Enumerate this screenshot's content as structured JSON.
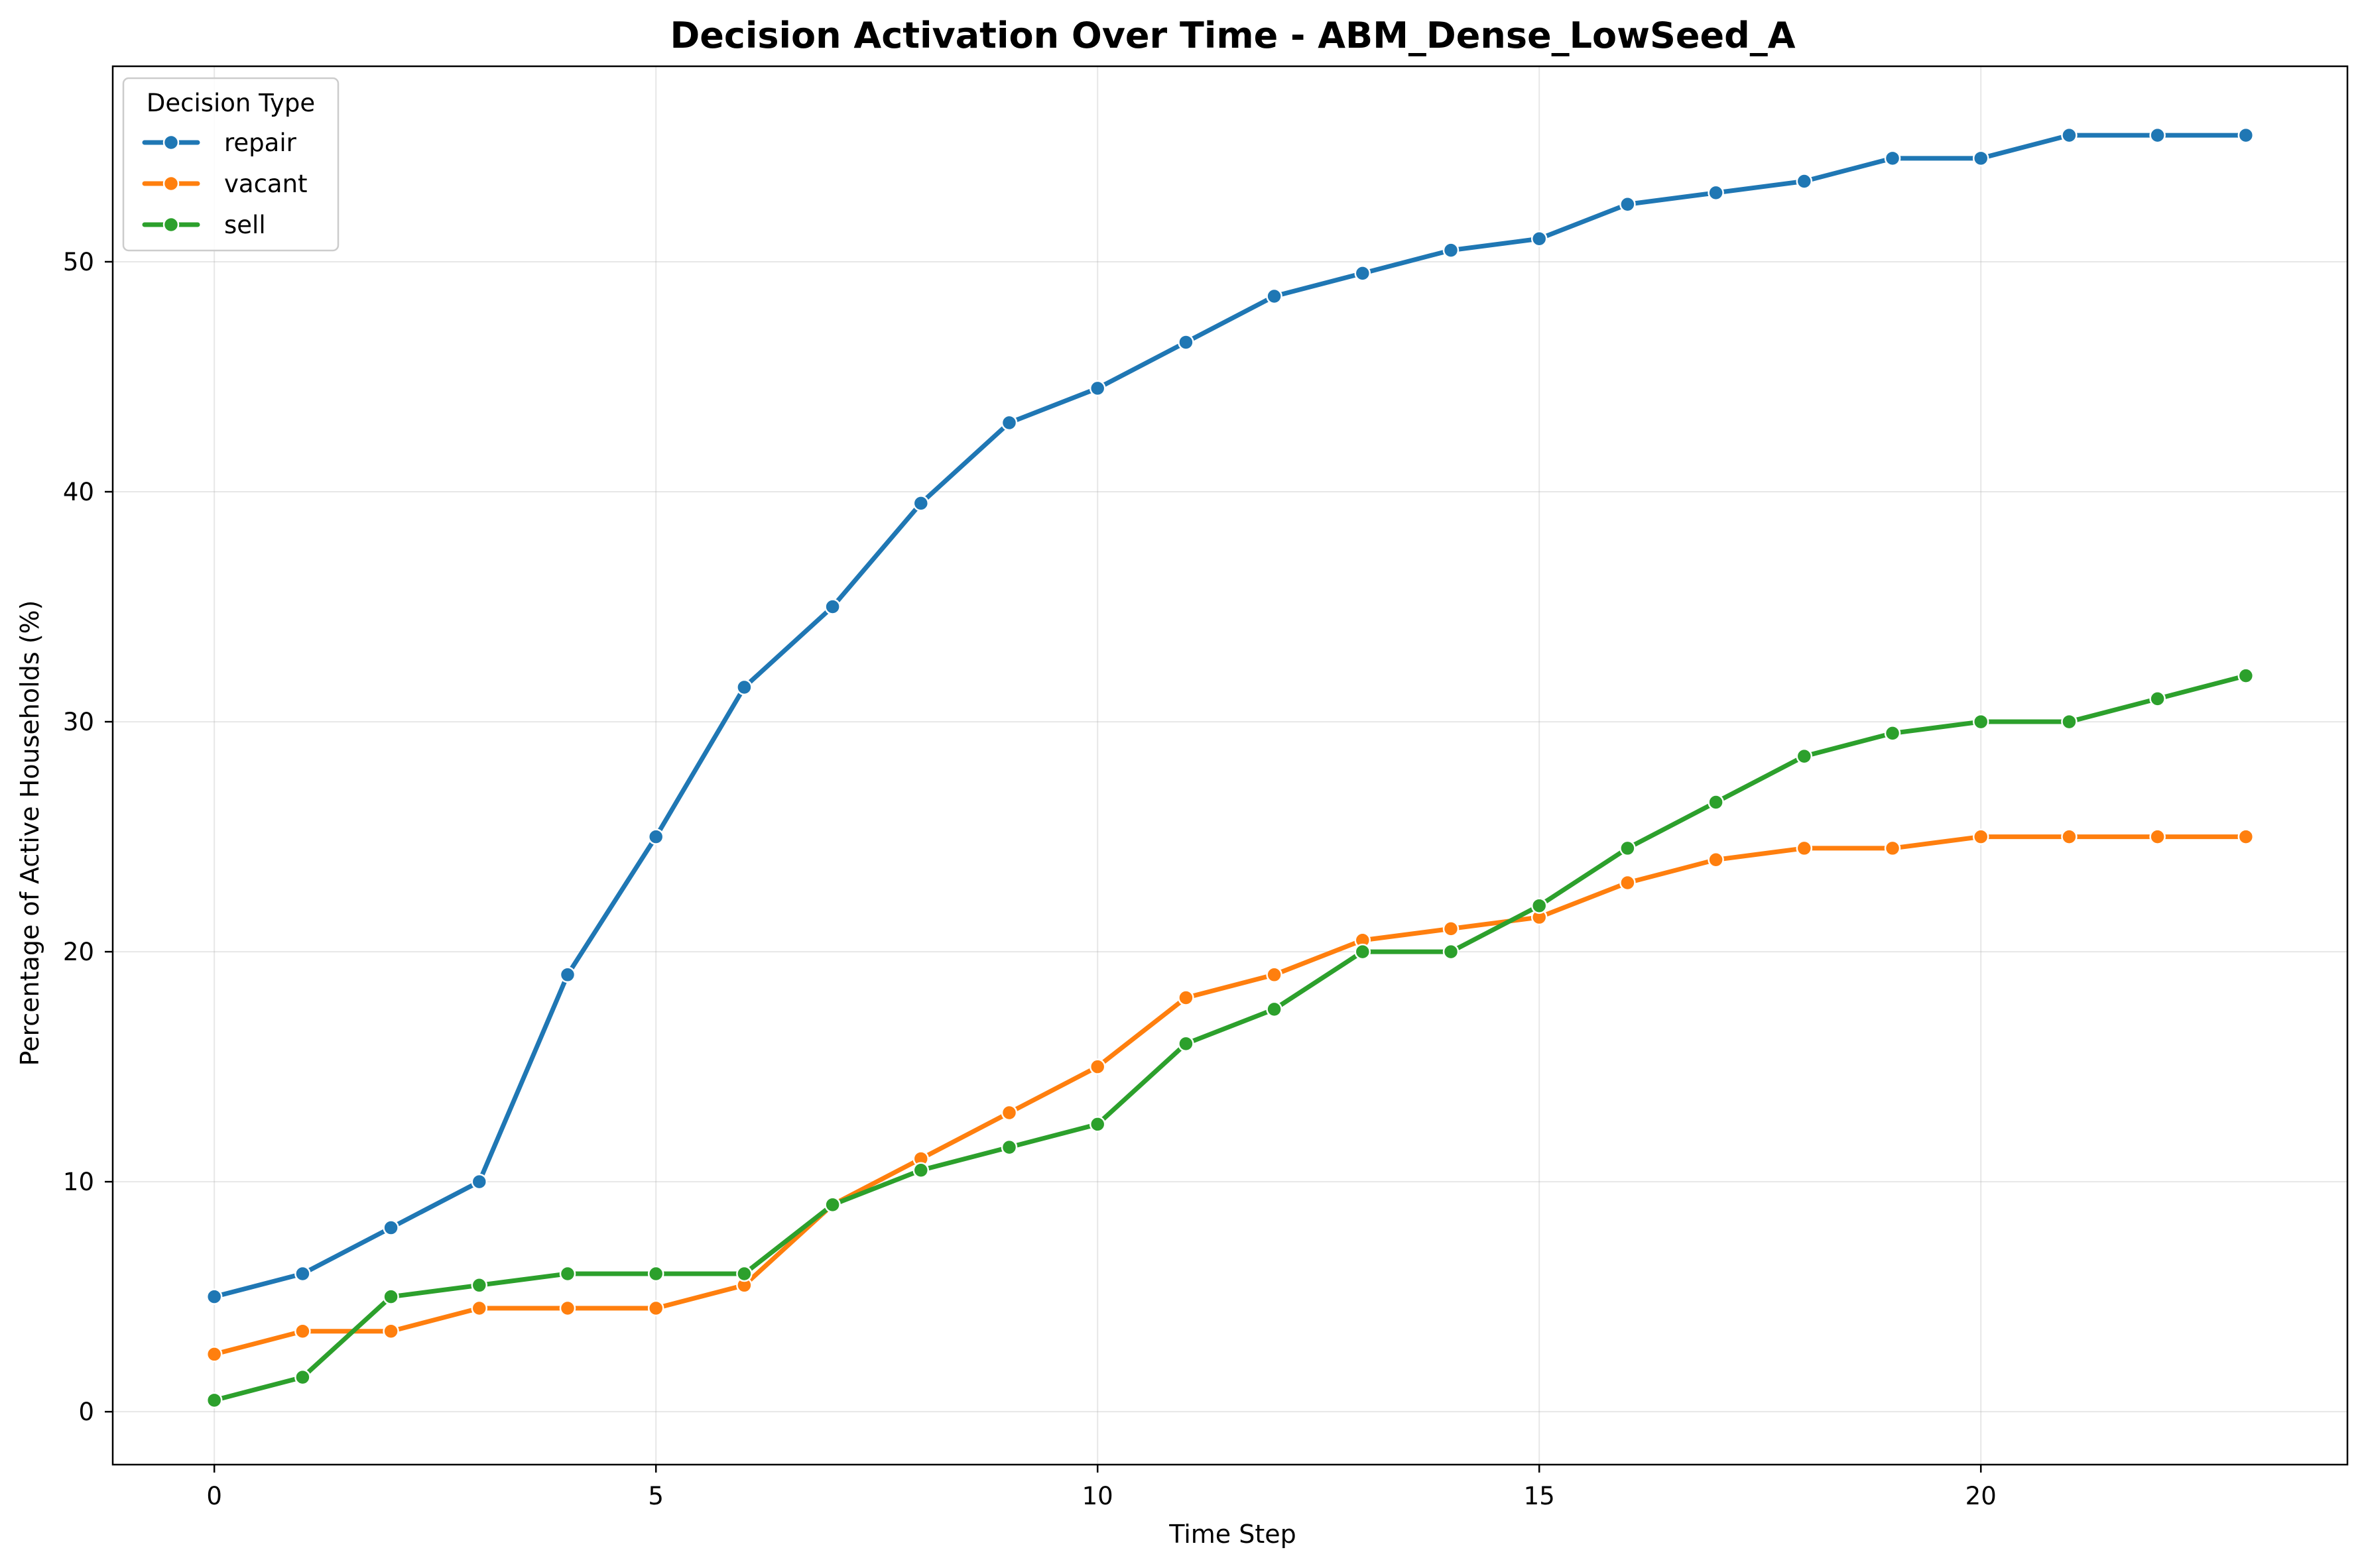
{
  "chart_data": {
    "type": "line",
    "title": "Decision Activation Over Time - ABM_Dense_LowSeed_A",
    "xlabel": "Time Step",
    "ylabel": "Percentage of Active Households (%)",
    "xlim": [
      -1.15,
      24.15
    ],
    "ylim": [
      -2.3,
      58.5
    ],
    "xticks": [
      0,
      5,
      10,
      15,
      20
    ],
    "yticks": [
      0,
      10,
      20,
      30,
      40,
      50
    ],
    "grid": true,
    "legend": {
      "title": "Decision Type",
      "position": "top-left"
    },
    "x": [
      0,
      1,
      2,
      3,
      4,
      5,
      6,
      7,
      8,
      9,
      10,
      11,
      12,
      13,
      14,
      15,
      16,
      17,
      18,
      19,
      20,
      21,
      22,
      23
    ],
    "series": [
      {
        "name": "repair",
        "color": "#1f77b4",
        "values": [
          5,
          6,
          8,
          10,
          19,
          25,
          31.5,
          35,
          39.5,
          43,
          44.5,
          46.5,
          48.5,
          49.5,
          50.5,
          51,
          52.5,
          53,
          53.5,
          54.5,
          54.5,
          55.5,
          55.5,
          55.5
        ]
      },
      {
        "name": "vacant",
        "color": "#ff7f0e",
        "values": [
          2.5,
          3.5,
          3.5,
          4.5,
          4.5,
          4.5,
          5.5,
          9,
          11,
          13,
          15,
          18,
          19,
          20.5,
          21,
          21.5,
          23,
          24,
          24.5,
          24.5,
          25,
          25,
          25,
          25
        ]
      },
      {
        "name": "sell",
        "color": "#2ca02c",
        "values": [
          0.5,
          1.5,
          5,
          5.5,
          6,
          6,
          6,
          9,
          10.5,
          11.5,
          12.5,
          16,
          17.5,
          20,
          20,
          22,
          24.5,
          26.5,
          28.5,
          29.5,
          30,
          30,
          31,
          32
        ]
      }
    ]
  }
}
